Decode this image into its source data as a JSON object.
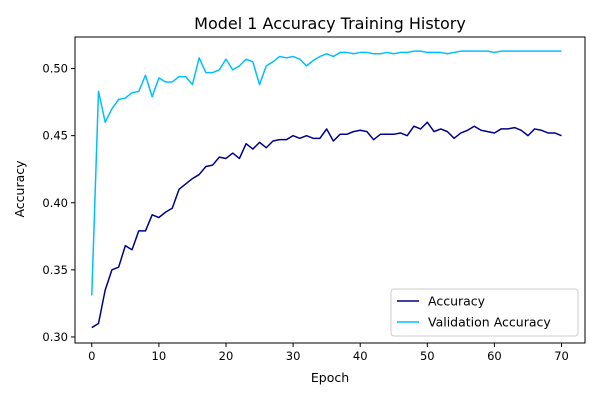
{
  "colors": {
    "accuracy": "#00008b",
    "validation_accuracy": "#00bfff",
    "axes": "#000000",
    "legend_border": "#cccccc"
  },
  "chart_data": {
    "type": "line",
    "title": "Model 1 Accuracy Training History",
    "xlabel": "Epoch",
    "ylabel": "Accuracy",
    "xlim": [
      -2.5,
      73.5
    ],
    "ylim": [
      0.2955,
      0.5235
    ],
    "xticks": [
      0,
      10,
      20,
      30,
      40,
      50,
      60,
      70
    ],
    "yticks": [
      0.3,
      0.35,
      0.4,
      0.45,
      0.5
    ],
    "ytick_labels": [
      "0.30",
      "0.35",
      "0.40",
      "0.45",
      "0.50"
    ],
    "grid": false,
    "legend_position": "lower-right",
    "x": [
      0,
      1,
      2,
      3,
      4,
      5,
      6,
      7,
      8,
      9,
      10,
      11,
      12,
      13,
      14,
      15,
      16,
      17,
      18,
      19,
      20,
      21,
      22,
      23,
      24,
      25,
      26,
      27,
      28,
      29,
      30,
      31,
      32,
      33,
      34,
      35,
      36,
      37,
      38,
      39,
      40,
      41,
      42,
      43,
      44,
      45,
      46,
      47,
      48,
      49,
      50,
      51,
      52,
      53,
      54,
      55,
      56,
      57,
      58,
      59,
      60,
      61,
      62,
      63,
      64,
      65,
      66,
      67,
      68,
      69,
      70
    ],
    "series": [
      {
        "name": "Accuracy",
        "color": "#00008b",
        "values": [
          0.307,
          0.31,
          0.335,
          0.35,
          0.352,
          0.368,
          0.365,
          0.379,
          0.379,
          0.391,
          0.389,
          0.393,
          0.396,
          0.41,
          0.414,
          0.418,
          0.421,
          0.427,
          0.428,
          0.434,
          0.433,
          0.437,
          0.433,
          0.444,
          0.44,
          0.445,
          0.441,
          0.446,
          0.447,
          0.447,
          0.45,
          0.448,
          0.45,
          0.448,
          0.448,
          0.455,
          0.446,
          0.451,
          0.451,
          0.453,
          0.454,
          0.453,
          0.447,
          0.451,
          0.451,
          0.451,
          0.452,
          0.45,
          0.457,
          0.455,
          0.46,
          0.453,
          0.455,
          0.453,
          0.448,
          0.452,
          0.454,
          0.457,
          0.454,
          0.453,
          0.452,
          0.455,
          0.455,
          0.456,
          0.454,
          0.45,
          0.455,
          0.454,
          0.452,
          0.452,
          0.45
        ]
      },
      {
        "name": "Validation Accuracy",
        "color": "#00bfff",
        "values": [
          0.331,
          0.483,
          0.46,
          0.47,
          0.477,
          0.478,
          0.482,
          0.483,
          0.495,
          0.479,
          0.493,
          0.49,
          0.49,
          0.494,
          0.494,
          0.488,
          0.508,
          0.497,
          0.497,
          0.499,
          0.507,
          0.499,
          0.502,
          0.507,
          0.505,
          0.488,
          0.502,
          0.505,
          0.509,
          0.508,
          0.509,
          0.507,
          0.502,
          0.506,
          0.509,
          0.511,
          0.509,
          0.512,
          0.512,
          0.511,
          0.512,
          0.512,
          0.511,
          0.511,
          0.512,
          0.511,
          0.512,
          0.512,
          0.513,
          0.513,
          0.512,
          0.512,
          0.512,
          0.511,
          0.512,
          0.513,
          0.513,
          0.513,
          0.513,
          0.513,
          0.512,
          0.513,
          0.513,
          0.513,
          0.513,
          0.513,
          0.513,
          0.513,
          0.513,
          0.513,
          0.513
        ]
      }
    ]
  }
}
